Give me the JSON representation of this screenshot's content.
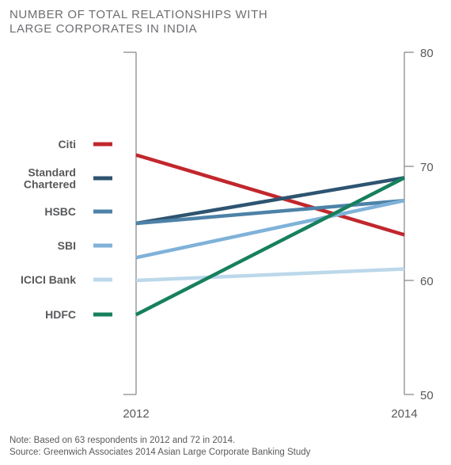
{
  "title_lines": [
    "NUMBER OF TOTAL RELATIONSHIPS WITH",
    "LARGE CORPORATES IN INDIA"
  ],
  "notes": {
    "note": "Note: Based on 63 respondents in 2012 and 72 in 2014.",
    "source": "Source: Greenwich Associates 2014 Asian Large Corporate Banking Study"
  },
  "chart_data": {
    "type": "line",
    "title": "NUMBER OF TOTAL RELATIONSHIPS WITH LARGE CORPORATES IN INDIA",
    "x": [
      "2012",
      "2014"
    ],
    "ylim": [
      50,
      80
    ],
    "yticks": [
      50,
      60,
      70,
      80
    ],
    "grid": false,
    "legend_position": "left",
    "series": [
      {
        "name": "Citi",
        "label_lines": [
          "Citi"
        ],
        "values": [
          71,
          64
        ],
        "color": "#c1272d"
      },
      {
        "name": "Standard Chartered",
        "label_lines": [
          "Standard",
          "Chartered"
        ],
        "values": [
          65,
          69
        ],
        "color": "#2e5470"
      },
      {
        "name": "HSBC",
        "label_lines": [
          "HSBC"
        ],
        "values": [
          65,
          67
        ],
        "color": "#4d82a8"
      },
      {
        "name": "SBI",
        "label_lines": [
          "SBI"
        ],
        "values": [
          62,
          67
        ],
        "color": "#7fb2d9"
      },
      {
        "name": "ICICI Bank",
        "label_lines": [
          "ICICI Bank"
        ],
        "values": [
          60,
          61
        ],
        "color": "#bcd8ea"
      },
      {
        "name": "HDFC",
        "label_lines": [
          "HDFC"
        ],
        "values": [
          57,
          69
        ],
        "color": "#17805d"
      }
    ]
  }
}
